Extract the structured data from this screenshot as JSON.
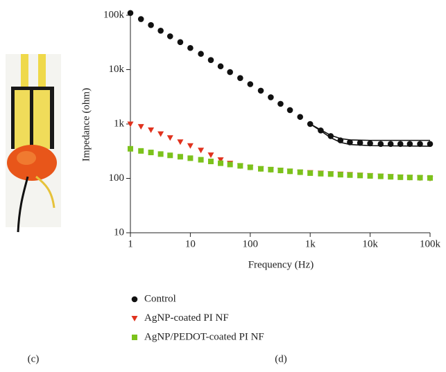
{
  "chart_data": {
    "type": "scatter",
    "log_x": true,
    "log_y": true,
    "xlabel": "Frequency (Hz)",
    "ylabel": "Impedance (ohm)",
    "xlim": [
      1,
      100000
    ],
    "ylim": [
      10,
      100000
    ],
    "xticks": [
      1,
      10,
      100,
      {
        "value": 1000,
        "label": "1k"
      },
      {
        "value": 10000,
        "label": "10k"
      },
      {
        "value": 100000,
        "label": "100k"
      }
    ],
    "yticks": [
      10,
      100,
      {
        "value": 1000,
        "label": "1k"
      },
      {
        "value": 10000,
        "label": "10k"
      },
      {
        "value": 100000,
        "label": "100k"
      }
    ],
    "x": [
      1,
      1.5,
      2.2,
      3.2,
      4.6,
      6.8,
      10,
      15,
      22,
      32,
      46,
      68,
      100,
      150,
      220,
      320,
      460,
      680,
      1000,
      1500,
      2200,
      3200,
      4600,
      6800,
      10000,
      15000,
      22000,
      32000,
      46000,
      68000,
      100000
    ],
    "series": [
      {
        "name": "Control",
        "color": "#111111",
        "marker": "circle",
        "values": [
          110000,
          85000,
          66000,
          52000,
          41000,
          32000,
          25000,
          19500,
          15000,
          11500,
          9000,
          7000,
          5400,
          4100,
          3100,
          2350,
          1800,
          1350,
          1000,
          760,
          600,
          500,
          460,
          450,
          440,
          430,
          430,
          430,
          430,
          430,
          430
        ]
      },
      {
        "name": "AgNP-coated PI NF",
        "color": "#e0321e",
        "marker": "triangle",
        "values": [
          1000,
          900,
          780,
          660,
          560,
          470,
          400,
          330,
          270,
          220,
          190,
          170,
          160,
          150,
          145,
          140,
          135,
          130,
          128,
          125,
          122,
          120,
          118,
          115,
          113,
          110,
          108,
          106,
          104,
          102,
          100
        ]
      },
      {
        "name": "AgNP/PEDOT-coated PI NF",
        "color": "#7cc21c",
        "marker": "square",
        "values": [
          350,
          320,
          300,
          280,
          265,
          250,
          235,
          220,
          205,
          190,
          180,
          170,
          160,
          150,
          145,
          140,
          135,
          130,
          125,
          122,
          120,
          117,
          115,
          113,
          111,
          109,
          107,
          105,
          104,
          103,
          102
        ]
      }
    ],
    "fit": [
      {
        "color": "#111111",
        "x": [
          1000,
          1500,
          2200,
          3200,
          4600,
          10000,
          100000
        ],
        "values": [
          1000,
          780,
          620,
          540,
          510,
          500,
          500
        ]
      },
      {
        "color": "#111111",
        "x": [
          1000,
          1500,
          2200,
          3200,
          4600,
          10000,
          100000
        ],
        "values": [
          1000,
          750,
          560,
          460,
          420,
          400,
          390
        ]
      }
    ],
    "legend": "bottom"
  },
  "panel_labels": [
    "(c)",
    "(d)"
  ]
}
